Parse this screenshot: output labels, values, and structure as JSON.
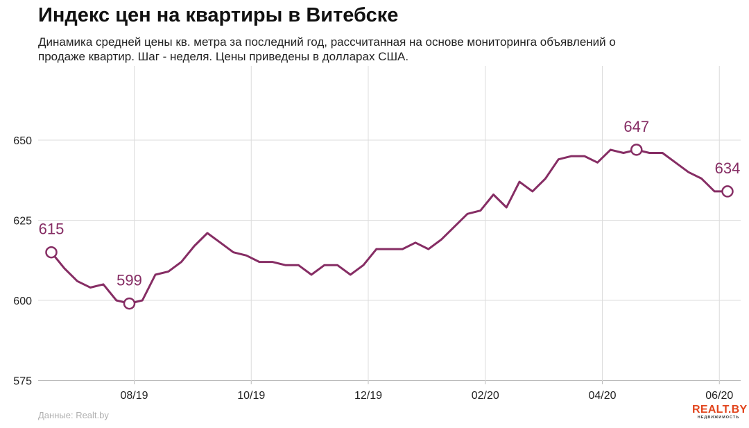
{
  "header": {
    "title": "Индекс цен на квартиры в Витебске",
    "subtitle": "Динамика средней цены кв. метра за последний год, рассчитанная на основе мониторинга объявлений о продаже квартир. Шаг - неделя. Цены приведены в долларах США."
  },
  "footer": {
    "source": "Данные: Realt.by",
    "logo_main": "REALT.BY",
    "logo_sub": "НЕДВИЖИМОСТЬ"
  },
  "colors": {
    "line": "#862d64",
    "grid": "#dcdcdc",
    "axis_text": "#222222"
  },
  "chart_data": {
    "type": "line",
    "title": "Индекс цен на квартиры в Витебске",
    "xlabel": "",
    "ylabel": "",
    "ylim": [
      575,
      675
    ],
    "y_ticks": [
      575,
      600,
      625,
      650
    ],
    "x_ticks": [
      {
        "label": "08/19",
        "week": 6
      },
      {
        "label": "10/19",
        "week": 15
      },
      {
        "label": "12/19",
        "week": 24
      },
      {
        "label": "02/20",
        "week": 33
      },
      {
        "label": "04/20",
        "week": 42
      },
      {
        "label": "06/20",
        "week": 51
      }
    ],
    "grid": true,
    "series": [
      {
        "values": [
          615,
          610,
          606,
          604,
          605,
          600,
          599,
          600,
          608,
          609,
          612,
          617,
          621,
          618,
          615,
          614,
          612,
          612,
          611,
          611,
          608,
          611,
          611,
          608,
          611,
          616,
          616,
          616,
          618,
          616,
          619,
          623,
          627,
          628,
          633,
          629,
          637,
          634,
          638,
          644,
          645,
          645,
          643,
          647,
          646,
          647,
          646,
          646,
          643,
          640,
          638,
          634,
          634
        ]
      }
    ],
    "annotations": [
      {
        "week": 0,
        "value": 615,
        "label": "615"
      },
      {
        "week": 6,
        "value": 599,
        "label": "599"
      },
      {
        "week": 45,
        "value": 647,
        "label": "647"
      },
      {
        "week": 52,
        "value": 634,
        "label": "634"
      }
    ]
  }
}
